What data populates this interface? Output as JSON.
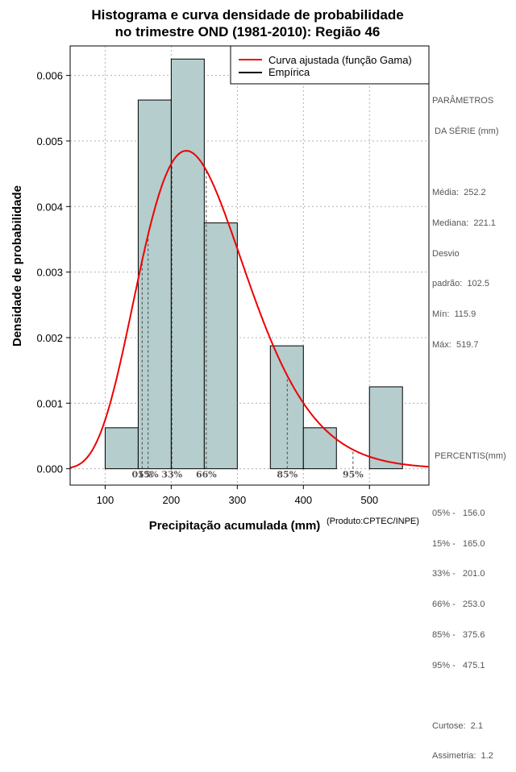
{
  "chart_data": {
    "type": "bar",
    "title_line1": "Histograma e curva densidade de probabilidade",
    "title_line2": "no trimestre OND (1981-2010): Região 46",
    "xlabel": "Precipitação acumulada (mm)",
    "ylabel": "Densidade de probabilidade",
    "credit": "(Produto:CPTEC/INPE)",
    "xlim": [
      47,
      590
    ],
    "ylim": [
      -0.00025,
      0.00645
    ],
    "x_ticks": [
      100,
      200,
      300,
      400,
      500
    ],
    "x_tick_labels": [
      "100",
      "200",
      "300",
      "400",
      "500"
    ],
    "y_ticks": [
      0,
      0.001,
      0.002,
      0.003,
      0.004,
      0.005,
      0.006
    ],
    "y_tick_labels": [
      "0.000",
      "0.001",
      "0.002",
      "0.003",
      "0.004",
      "0.005",
      "0.006"
    ],
    "grid": true,
    "bins": [
      {
        "from": 100,
        "to": 150,
        "density": 0.000625
      },
      {
        "from": 150,
        "to": 200,
        "density": 0.005625
      },
      {
        "from": 200,
        "to": 250,
        "density": 0.00625
      },
      {
        "from": 250,
        "to": 300,
        "density": 0.00375
      },
      {
        "from": 300,
        "to": 350,
        "density": 0
      },
      {
        "from": 350,
        "to": 400,
        "density": 0.001875
      },
      {
        "from": 400,
        "to": 450,
        "density": 0.000625
      },
      {
        "from": 450,
        "to": 500,
        "density": 0
      },
      {
        "from": 500,
        "to": 550,
        "density": 0.00125
      }
    ],
    "gamma_fit": {
      "shape": 8.5,
      "scale": 29.7,
      "label": "Curva ajustada (função Gama)",
      "color": "#ee0000"
    },
    "empirical_label": "Empírica",
    "empirical_color": "#000000",
    "bar_color": "#b5cdcd",
    "legend_position": "top-right",
    "percentile_markers": [
      {
        "label": "05%",
        "value": 156.0
      },
      {
        "label": "15%",
        "value": 165.0
      },
      {
        "label": "33%",
        "value": 201.0
      },
      {
        "label": "66%",
        "value": 253.0
      },
      {
        "label": "85%",
        "value": 375.6
      },
      {
        "label": "95%",
        "value": 475.1
      }
    ]
  },
  "side_panel": {
    "params_title1": "PARÂMETROS",
    "params_title2": " DA SÉRIE (mm)",
    "media": "Média:  252.2",
    "mediana": "Mediana:  221.1",
    "desvio1": "Desvio",
    "desvio2": "padrão:  102.5",
    "min": "Mín:  115.9",
    "max": "Máx:  519.7",
    "pct_title": " PERCENTIS(mm)",
    "p05": "05% -   156.0",
    "p15": "15% -   165.0",
    "p33": "33% -   201.0",
    "p66": "66% -   253.0",
    "p85": "85% -   375.6",
    "p95": "95% -   475.1",
    "curtose": "Curtose:  2.1",
    "assimetria": "Assimetria:  1.2"
  }
}
